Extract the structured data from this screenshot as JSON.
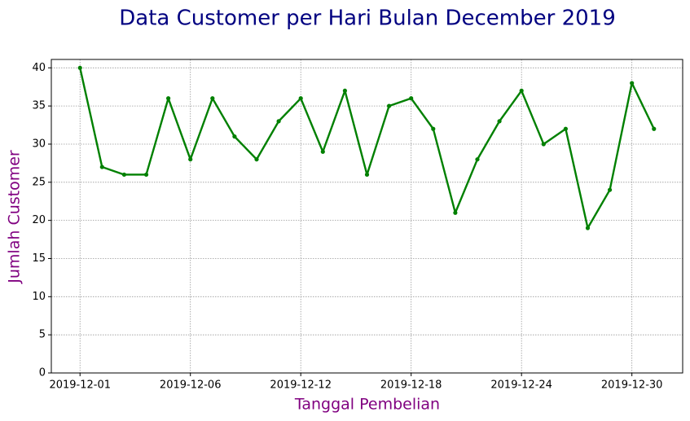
{
  "chart_data": {
    "type": "line",
    "title": "Data Customer per Hari Bulan December 2019",
    "x_label": "Tanggal Pembelian",
    "y_label": "Jumlah Customer",
    "x": [
      0,
      1,
      2,
      3,
      4,
      5,
      6,
      7,
      8,
      9,
      10,
      11,
      12,
      13,
      14,
      15,
      16,
      17,
      18,
      19,
      20,
      21,
      22,
      23,
      24,
      25,
      26
    ],
    "series": [
      {
        "name": "Jumlah Customer",
        "color": "#008000",
        "values": [
          40,
          27,
          26,
          26,
          36,
          28,
          36,
          31,
          28,
          33,
          36,
          29,
          37,
          26,
          35,
          36,
          32,
          21,
          28,
          33,
          37,
          30,
          32,
          19,
          24,
          38,
          32
        ]
      }
    ],
    "xlim": [
      -1.3,
      27.3
    ],
    "xticks": [
      {
        "value": 0,
        "label": "2019-12-01"
      },
      {
        "value": 5,
        "label": "2019-12-06"
      },
      {
        "value": 10,
        "label": "2019-12-12"
      },
      {
        "value": 15,
        "label": "2019-12-18"
      },
      {
        "value": 20,
        "label": "2019-12-24"
      },
      {
        "value": 25,
        "label": "2019-12-30"
      }
    ],
    "ylim": [
      0,
      41.1
    ],
    "yticks": [
      0,
      5,
      10,
      15,
      20,
      25,
      30,
      35,
      40
    ],
    "grid": true
  }
}
